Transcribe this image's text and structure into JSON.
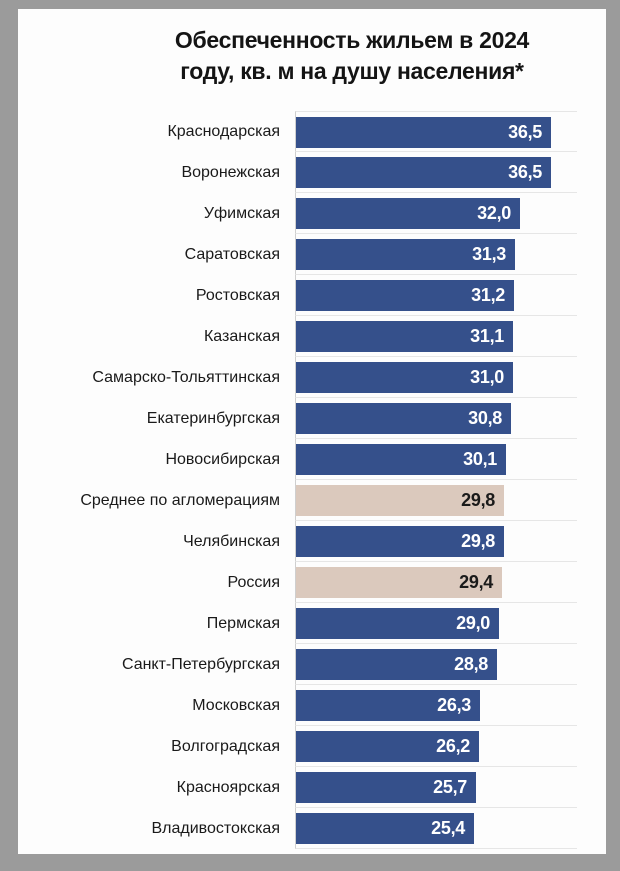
{
  "title": {
    "line1": "Обеспеченность жильем в 2024",
    "line2": "году, кв. м на душу населения*"
  },
  "chart_data": {
    "type": "bar",
    "orientation": "horizontal",
    "title": "Обеспеченность жильем в 2024 году, кв. м на душу населения*",
    "unit": "кв. м на душу населения",
    "xlim": [
      0,
      40
    ],
    "grid": "row-separators-only",
    "categories": [
      "Краснодарская",
      "Воронежская",
      "Уфимская",
      "Саратовская",
      "Ростовская",
      "Казанская",
      "Самарско-Тольяттинская",
      "Екатеринбургская",
      "Новосибирская",
      "Среднее по агломерациям",
      "Челябинская",
      "Россия",
      "Пермская",
      "Санкт-Петербургская",
      "Московская",
      "Волгоградская",
      "Красноярская",
      "Владивостокская"
    ],
    "values": [
      36.5,
      36.5,
      32.0,
      31.3,
      31.2,
      31.1,
      31.0,
      30.8,
      30.1,
      29.8,
      29.8,
      29.4,
      29.0,
      28.8,
      26.3,
      26.2,
      25.7,
      25.4
    ],
    "value_labels": [
      "36,5",
      "36,5",
      "32,0",
      "31,3",
      "31,2",
      "31,1",
      "31,0",
      "30,8",
      "30,1",
      "29,8",
      "29,8",
      "29,4",
      "29,0",
      "28,8",
      "26,3",
      "26,2",
      "25,7",
      "25,4"
    ],
    "highlighted_categories": [
      "Среднее по агломерациям",
      "Россия"
    ],
    "colors": {
      "bar": "#35508B",
      "highlight_bar": "#DBC9BD",
      "bar_value_text": "#FFFFFF",
      "highlight_value_text": "#1A1A1A",
      "category_text": "#1A1A1A",
      "frame": "#9B9B9B",
      "panel": "#FDFDFD"
    }
  }
}
